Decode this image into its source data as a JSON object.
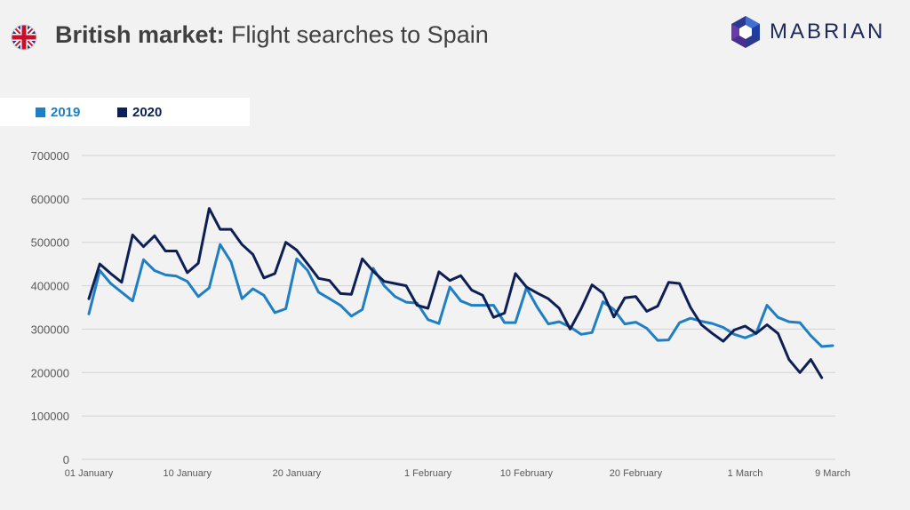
{
  "header": {
    "title_bold": "British market:",
    "title_rest": " Flight searches to Spain",
    "flag_icon": "uk-flag-icon",
    "logo_icon": "hexagon-logo-icon",
    "logo_text": "MABRIAN"
  },
  "colors": {
    "series_2019": "#1f7fc4",
    "series_2020": "#0d1f55",
    "grid": "#d3d3d3",
    "axis_text": "#595959"
  },
  "chart_data": {
    "type": "line",
    "title": "British market: Flight searches to Spain",
    "xlabel": "",
    "ylabel": "",
    "ylim": [
      0,
      700000
    ],
    "yticks": [
      0,
      100000,
      200000,
      300000,
      400000,
      500000,
      600000,
      700000
    ],
    "grid": true,
    "legend_position": "top-left",
    "x_tick_labels": [
      {
        "label": "01 January",
        "index": 0
      },
      {
        "label": "10 January",
        "index": 9
      },
      {
        "label": "20 January",
        "index": 19
      },
      {
        "label": "1 February",
        "index": 31
      },
      {
        "label": "10 February",
        "index": 40
      },
      {
        "label": "20 February",
        "index": 50
      },
      {
        "label": "1 March",
        "index": 60
      },
      {
        "label": "9 March",
        "index": 68
      }
    ],
    "series": [
      {
        "name": "2019",
        "values": [
          335000,
          435000,
          405000,
          385000,
          365000,
          460000,
          435000,
          425000,
          422000,
          410000,
          375000,
          395000,
          495000,
          455000,
          370000,
          393000,
          378000,
          338000,
          347000,
          462000,
          435000,
          385000,
          370000,
          355000,
          330000,
          345000,
          440000,
          400000,
          375000,
          362000,
          360000,
          322000,
          313000,
          397000,
          365000,
          355000,
          355000,
          355000,
          315000,
          315000,
          395000,
          350000,
          312000,
          317000,
          305000,
          288000,
          292000,
          363000,
          345000,
          312000,
          316000,
          302000,
          274000,
          275000,
          315000,
          325000,
          318000,
          313000,
          304000,
          288000,
          280000,
          290000,
          355000,
          327000,
          317000,
          315000,
          285000,
          260000,
          262000
        ],
        "color": "#1f7fc4"
      },
      {
        "name": "2020",
        "values": [
          370000,
          450000,
          428000,
          408000,
          517000,
          490000,
          515000,
          480000,
          480000,
          430000,
          452000,
          578000,
          530000,
          530000,
          495000,
          472000,
          418000,
          428000,
          500000,
          482000,
          450000,
          417000,
          412000,
          382000,
          380000,
          462000,
          433000,
          410000,
          405000,
          400000,
          355000,
          348000,
          432000,
          412000,
          423000,
          390000,
          378000,
          327000,
          337000,
          428000,
          397000,
          383000,
          370000,
          348000,
          300000,
          347000,
          402000,
          383000,
          328000,
          372000,
          375000,
          341000,
          353000,
          408000,
          405000,
          350000,
          310000,
          290000,
          272000,
          298000,
          307000,
          290000,
          310000,
          290000,
          230000,
          200000,
          230000,
          188000
        ],
        "color": "#0d1f55"
      }
    ]
  }
}
